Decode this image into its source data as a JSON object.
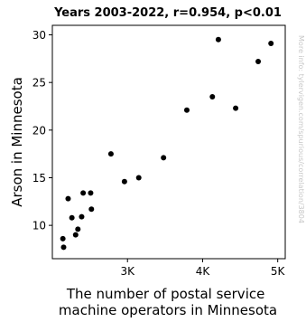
{
  "chart_data": {
    "type": "scatter",
    "title": "Years 2003-2022, r=0.954, p<0.01",
    "xlabel": "The number of postal service\nmachine operators in Minnesota",
    "ylabel": "Arson in Minnesota",
    "xlim": [
      2000,
      5100
    ],
    "ylim": [
      6.5,
      31
    ],
    "x_ticks": [
      3000,
      4000,
      5000
    ],
    "x_tick_labels": [
      "3K",
      "4K",
      "5K"
    ],
    "y_ticks": [
      10,
      15,
      20,
      25,
      30
    ],
    "y_tick_labels": [
      "10",
      "15",
      "20",
      "25",
      "30"
    ],
    "grid": false,
    "legend": "none",
    "watermark": "More info: tylervigen.com/spurious/correlation/3804",
    "colors": {
      "points": "#000000",
      "axes": "#000000",
      "watermark": "#c8c8c8"
    },
    "points": [
      {
        "x": 2140,
        "y": 8.6
      },
      {
        "x": 2150,
        "y": 7.7
      },
      {
        "x": 2210,
        "y": 12.8
      },
      {
        "x": 2260,
        "y": 10.8
      },
      {
        "x": 2310,
        "y": 9.0
      },
      {
        "x": 2340,
        "y": 9.6
      },
      {
        "x": 2390,
        "y": 10.9
      },
      {
        "x": 2410,
        "y": 13.4
      },
      {
        "x": 2510,
        "y": 13.4
      },
      {
        "x": 2520,
        "y": 11.7
      },
      {
        "x": 2780,
        "y": 17.5
      },
      {
        "x": 2960,
        "y": 14.6
      },
      {
        "x": 3150,
        "y": 15.0
      },
      {
        "x": 3480,
        "y": 17.1
      },
      {
        "x": 3790,
        "y": 22.1
      },
      {
        "x": 4130,
        "y": 23.5
      },
      {
        "x": 4210,
        "y": 29.5
      },
      {
        "x": 4440,
        "y": 22.3
      },
      {
        "x": 4740,
        "y": 27.2
      },
      {
        "x": 4910,
        "y": 29.1
      }
    ]
  }
}
